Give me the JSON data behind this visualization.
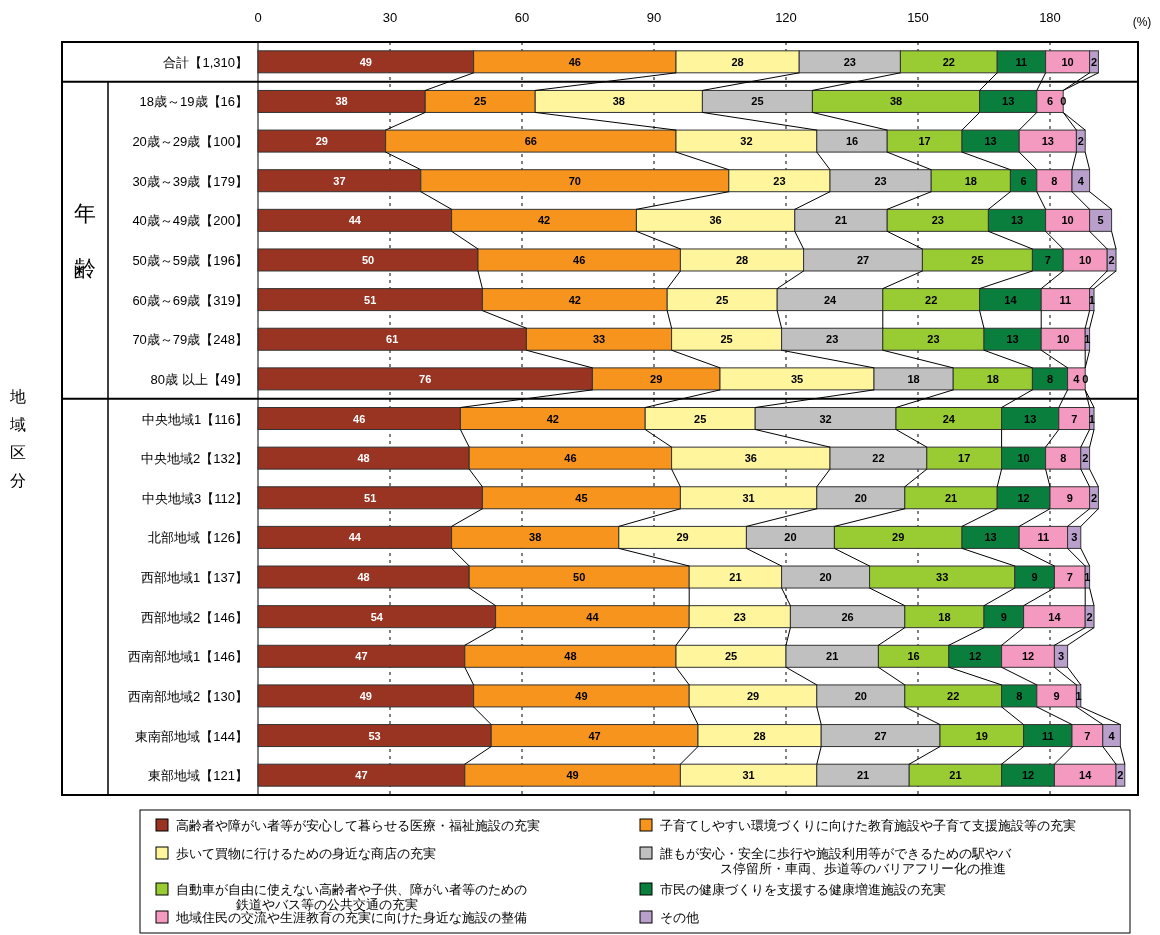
{
  "chart_data": {
    "type": "bar",
    "orientation": "horizontal",
    "stacked": true,
    "data_labels": true,
    "grid": "x",
    "legend": "bottom",
    "xlabel": "(%)",
    "xlim": [
      0,
      200
    ],
    "xticks": [
      0,
      30,
      60,
      90,
      120,
      150,
      180
    ],
    "annotations": [
      "年齢",
      "地域区分"
    ],
    "categories": [
      "合計【1,310】",
      "18歳～19歳【16】",
      "20歳～29歳【100】",
      "30歳～39歳【179】",
      "40歳～49歳【200】",
      "50歳～59歳【196】",
      "60歳～69歳【319】",
      "70歳～79歳【248】",
      "80歳 以上【49】",
      "中央地域1【116】",
      "中央地域2【132】",
      "中央地域3【112】",
      "北部地域【126】",
      "西部地域1【137】",
      "西部地域2【146】",
      "西南部地域1【146】",
      "西南部地域2【130】",
      "東南部地域【144】",
      "東部地域【121】"
    ],
    "series": [
      {
        "name": "高齢者や障がい者等が安心して暮らせる医療・福祉施設の充実",
        "color": "#993322",
        "values": [
          49,
          38,
          29,
          37,
          44,
          50,
          51,
          61,
          76,
          46,
          48,
          51,
          44,
          48,
          54,
          47,
          49,
          53,
          47
        ]
      },
      {
        "name": "子育てしやすい環境づくりに向けた教育施設や子育て支援施設等の充実",
        "color": "#f7941d",
        "values": [
          46,
          25,
          66,
          70,
          42,
          46,
          42,
          33,
          29,
          42,
          46,
          45,
          38,
          50,
          44,
          48,
          49,
          47,
          49
        ]
      },
      {
        "name": "歩いて買物に行けるための身近な商店の充実",
        "color": "#fff59d",
        "values": [
          28,
          38,
          32,
          23,
          36,
          28,
          25,
          25,
          35,
          25,
          36,
          31,
          29,
          21,
          23,
          25,
          29,
          28,
          31
        ]
      },
      {
        "name": "誰もが安心・安全に歩行や施設利用等ができるための駅やバス停留所・車両、歩道等のバリアフリー化の推進",
        "color": "#c0c0c0",
        "values": [
          23,
          25,
          16,
          23,
          21,
          27,
          24,
          23,
          18,
          32,
          22,
          20,
          20,
          20,
          26,
          21,
          20,
          27,
          21
        ]
      },
      {
        "name": "自動車が自由に使えない高齢者や子供、障がい者等のための鉄道やバス等の公共交通の充実",
        "color": "#99cc33",
        "values": [
          22,
          38,
          17,
          18,
          23,
          25,
          22,
          23,
          18,
          24,
          17,
          21,
          29,
          33,
          18,
          16,
          22,
          19,
          21
        ]
      },
      {
        "name": "市民の健康づくりを支援する健康増進施設の充実",
        "color": "#0a7e3d",
        "values": [
          11,
          13,
          13,
          6,
          13,
          7,
          14,
          13,
          8,
          13,
          10,
          12,
          13,
          9,
          9,
          12,
          8,
          11,
          12
        ]
      },
      {
        "name": "地域住民の交流や生涯教育の充実に向けた身近な施設の整備",
        "color": "#f49ac1",
        "values": [
          10,
          6,
          13,
          8,
          10,
          10,
          11,
          10,
          4,
          7,
          8,
          9,
          11,
          7,
          14,
          12,
          9,
          7,
          14
        ]
      },
      {
        "name": "その他",
        "color": "#b9a0cc",
        "values": [
          2,
          0,
          2,
          4,
          5,
          2,
          1,
          1,
          0,
          1,
          2,
          2,
          3,
          1,
          2,
          3,
          1,
          4,
          2
        ]
      }
    ]
  }
}
